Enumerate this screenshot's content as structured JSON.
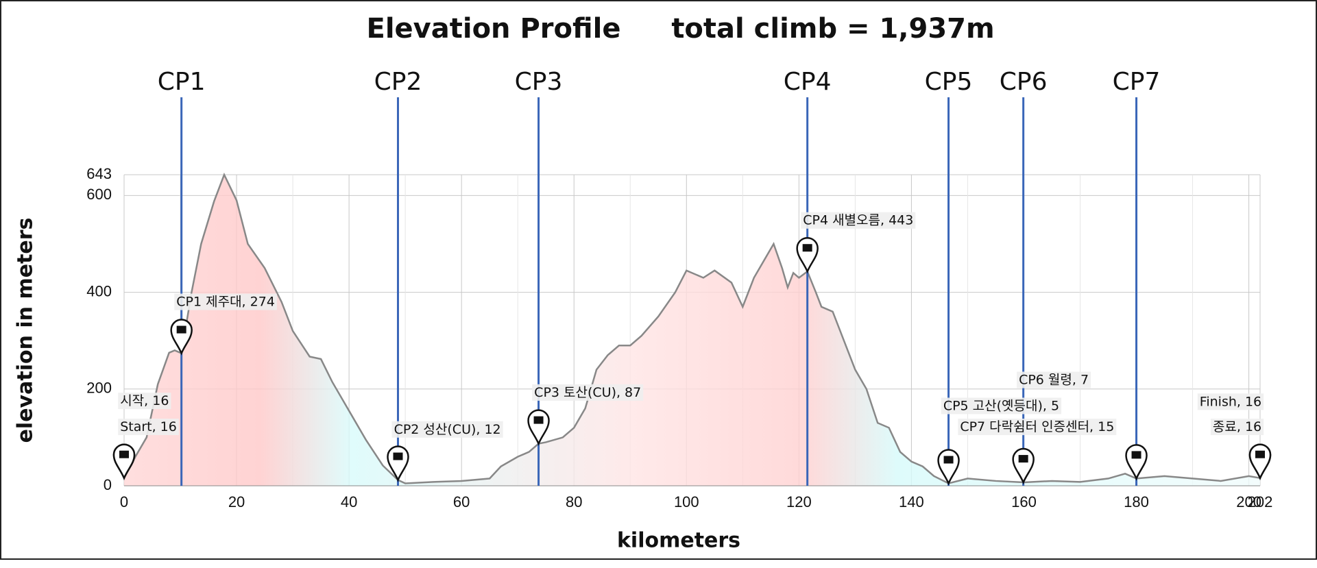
{
  "chart_data": {
    "type": "area",
    "title": "Elevation Profile",
    "subtitle": "total climb = 1,937m",
    "x_label": "kilometers",
    "y_label": "elevation in meters",
    "x": [
      0,
      2,
      4,
      6,
      8,
      9,
      10.2,
      12,
      13.7,
      16,
      17.8,
      20,
      22,
      25,
      28,
      30,
      33,
      35,
      37,
      40,
      43,
      46,
      48.7,
      50,
      55,
      60,
      65,
      67,
      70,
      72,
      73.7,
      75,
      78,
      80,
      82,
      84,
      86,
      88,
      90,
      92,
      95,
      98,
      100,
      103,
      105,
      108,
      110,
      112,
      114,
      115.5,
      117,
      118,
      119,
      120,
      121.5,
      123,
      124,
      126,
      128,
      130,
      132,
      134,
      136,
      138,
      140,
      142,
      144,
      146.6,
      150,
      155,
      160,
      165,
      170,
      175,
      178,
      180,
      185,
      190,
      195,
      200,
      202
    ],
    "values": [
      16,
      60,
      100,
      210,
      275,
      280,
      274,
      400,
      500,
      588,
      643,
      590,
      500,
      450,
      380,
      320,
      267,
      262,
      215,
      155,
      95,
      42,
      12,
      5,
      8,
      10,
      15,
      40,
      60,
      70,
      87,
      90,
      100,
      120,
      160,
      240,
      270,
      290,
      290,
      310,
      350,
      400,
      445,
      430,
      445,
      420,
      370,
      430,
      470,
      500,
      450,
      410,
      440,
      430,
      443,
      400,
      370,
      360,
      300,
      240,
      200,
      130,
      120,
      70,
      50,
      40,
      20,
      5,
      15,
      10,
      7,
      10,
      8,
      15,
      25,
      15,
      20,
      15,
      10,
      20,
      16
    ],
    "color": "#888888",
    "xlim": [
      0,
      202
    ],
    "xticks": [
      0,
      20,
      40,
      60,
      80,
      100,
      120,
      140,
      160,
      180,
      200,
      202
    ],
    "ylim": [
      0,
      643
    ],
    "yticks": [
      0,
      200,
      400,
      600,
      643
    ],
    "grid": true,
    "checkpoints": [
      {
        "name": "CP1",
        "x": 10.2
      },
      {
        "name": "CP2",
        "x": 48.7
      },
      {
        "name": "CP3",
        "x": 73.7
      },
      {
        "name": "CP4",
        "x": 121.5
      },
      {
        "name": "CP5",
        "x": 146.6
      },
      {
        "name": "CP6",
        "x": 159.9
      },
      {
        "name": "CP7",
        "x": 180
      }
    ],
    "checkpoint_color": "#3a66b8",
    "waypoints": [
      {
        "label": "Start, 16",
        "x": 0,
        "elevation": 16
      },
      {
        "label": "시작, 16",
        "x": 0,
        "elevation": 16
      },
      {
        "label": "CP1 제주대, 274",
        "x": 10.2,
        "elevation": 274
      },
      {
        "label": "CP2 성산(CU), 12",
        "x": 48.7,
        "elevation": 12
      },
      {
        "label": "CP3 토산(CU), 87",
        "x": 73.7,
        "elevation": 87
      },
      {
        "label": "CP4 새별오름, 443",
        "x": 121.5,
        "elevation": 443
      },
      {
        "label": "CP5 고산(옛등대), 5",
        "x": 146.6,
        "elevation": 5
      },
      {
        "label": "CP6 월령, 7",
        "x": 159.9,
        "elevation": 7
      },
      {
        "label": "CP7 다락쉼터 인증센터, 15",
        "x": 180,
        "elevation": 15
      },
      {
        "label": "Finish, 16",
        "x": 202,
        "elevation": 16
      },
      {
        "label": "종료, 16",
        "x": 202,
        "elevation": 16
      }
    ]
  }
}
